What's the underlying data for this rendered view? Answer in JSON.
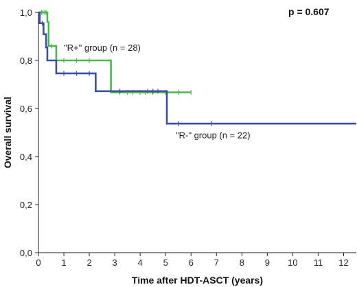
{
  "chart_data": {
    "type": "line",
    "step": true,
    "ylabel": "Overall survival",
    "xlabel": "Time after HDT-ASCT (years)",
    "xlim": [
      0,
      12.5
    ],
    "ylim": [
      0.0,
      1.0
    ],
    "xticks": [
      "0",
      "1",
      "2",
      "3",
      "4",
      "5",
      "6",
      "7",
      "8",
      "9",
      "10",
      "11",
      "12"
    ],
    "yticks": [
      "0,0",
      "0,2",
      "0,4",
      "0,6",
      "0,8",
      "1,0"
    ],
    "ytick_values": [
      0.0,
      0.2,
      0.4,
      0.6,
      0.8,
      1.0
    ],
    "grid": false,
    "p_value": "p = 0.607",
    "series": [
      {
        "name": "\"R+\" group (n = 28)",
        "color": "#4cb848",
        "steps": [
          [
            0,
            1.0
          ],
          [
            0.35,
            0.96
          ],
          [
            0.4,
            0.86
          ],
          [
            0.7,
            0.8
          ],
          [
            2.85,
            0.667
          ],
          [
            6.0,
            0.667
          ]
        ],
        "censored": [
          [
            0.12,
            1.0
          ],
          [
            0.18,
            1.0
          ],
          [
            0.25,
            1.0
          ],
          [
            0.3,
            1.0
          ],
          [
            0.52,
            0.86
          ],
          [
            1.0,
            0.8
          ],
          [
            1.5,
            0.8
          ],
          [
            2.0,
            0.8
          ],
          [
            3.2,
            0.667
          ],
          [
            3.5,
            0.667
          ],
          [
            3.7,
            0.667
          ],
          [
            4.0,
            0.667
          ],
          [
            4.2,
            0.667
          ],
          [
            4.5,
            0.667
          ],
          [
            5.0,
            0.667
          ],
          [
            5.5,
            0.667
          ],
          [
            6.0,
            0.667
          ]
        ]
      },
      {
        "name": "\"R-\" group (n = 22)",
        "color": "#3b4fa0",
        "steps": [
          [
            0,
            1.0
          ],
          [
            0.05,
            0.955
          ],
          [
            0.2,
            0.909
          ],
          [
            0.3,
            0.854
          ],
          [
            0.35,
            0.8
          ],
          [
            0.7,
            0.746
          ],
          [
            2.25,
            0.672
          ],
          [
            5.05,
            0.537
          ],
          [
            12.5,
            0.537
          ]
        ],
        "censored": [
          [
            0.15,
            0.955
          ],
          [
            1.0,
            0.746
          ],
          [
            1.5,
            0.746
          ],
          [
            2.0,
            0.746
          ],
          [
            3.2,
            0.672
          ],
          [
            4.3,
            0.672
          ],
          [
            4.5,
            0.672
          ],
          [
            4.7,
            0.672
          ],
          [
            5.5,
            0.537
          ],
          [
            6.8,
            0.537
          ]
        ]
      }
    ],
    "annotations": [
      {
        "text": "\"R+\" group (n = 28)",
        "x": 1.0,
        "y": 0.855
      },
      {
        "text": "\"R-\" group (n = 22)",
        "x": 5.4,
        "y": 0.49
      }
    ]
  }
}
